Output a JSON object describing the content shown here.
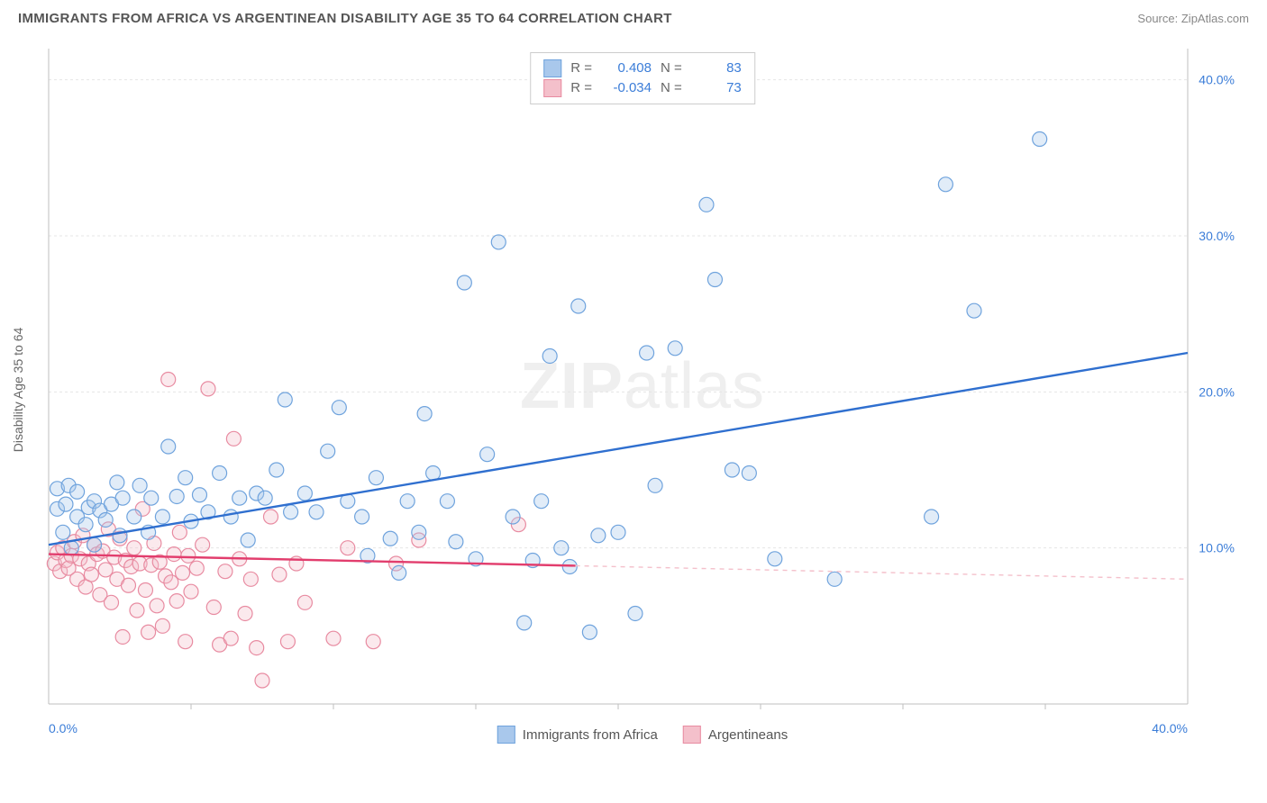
{
  "title": "IMMIGRANTS FROM AFRICA VS ARGENTINEAN DISABILITY AGE 35 TO 64 CORRELATION CHART",
  "source_label": "Source:",
  "source_name": "ZipAtlas.com",
  "y_axis_label": "Disability Age 35 to 64",
  "watermark_left": "ZIP",
  "watermark_right": "atlas",
  "chart": {
    "type": "scatter",
    "background_color": "#ffffff",
    "grid_color": "#e5e5e5",
    "grid_dash": "3,3",
    "axis_color": "#bfbfbf",
    "tick_label_color": "#3b7dd8",
    "xlim": [
      0,
      40
    ],
    "ylim": [
      0,
      42
    ],
    "x_tick_positions": [
      0,
      40
    ],
    "x_tick_labels": [
      "0.0%",
      "40.0%"
    ],
    "y_gridlines": [
      10,
      20,
      30,
      40
    ],
    "y_tick_labels": [
      "10.0%",
      "20.0%",
      "30.0%",
      "40.0%"
    ],
    "x_minor_ticks": [
      5,
      10,
      15,
      20,
      25,
      30,
      35
    ],
    "point_radius": 8,
    "point_stroke_width": 1.2,
    "point_fill_opacity": 0.35,
    "trend_line_width": 2.4,
    "series": [
      {
        "name": "Immigrants from Africa",
        "color_fill": "#a9c8ec",
        "color_stroke": "#6fa3dd",
        "trend_color": "#2f6fcf",
        "R": "0.408",
        "N": "83",
        "trend_start": [
          0,
          10.2
        ],
        "trend_end": [
          40,
          22.5
        ],
        "trend_dash_from_x": null,
        "points": [
          [
            0.3,
            12.5
          ],
          [
            0.3,
            13.8
          ],
          [
            0.5,
            11.0
          ],
          [
            0.7,
            14.0
          ],
          [
            0.8,
            10.0
          ],
          [
            0.6,
            12.8
          ],
          [
            1.0,
            12.0
          ],
          [
            1.0,
            13.6
          ],
          [
            1.3,
            11.5
          ],
          [
            1.4,
            12.6
          ],
          [
            1.6,
            10.2
          ],
          [
            1.6,
            13.0
          ],
          [
            1.8,
            12.4
          ],
          [
            2.0,
            11.8
          ],
          [
            2.2,
            12.8
          ],
          [
            2.4,
            14.2
          ],
          [
            2.5,
            10.8
          ],
          [
            2.6,
            13.2
          ],
          [
            3.0,
            12.0
          ],
          [
            3.2,
            14.0
          ],
          [
            3.5,
            11.0
          ],
          [
            3.6,
            13.2
          ],
          [
            4.0,
            12.0
          ],
          [
            4.2,
            16.5
          ],
          [
            4.5,
            13.3
          ],
          [
            4.8,
            14.5
          ],
          [
            5.0,
            11.7
          ],
          [
            5.3,
            13.4
          ],
          [
            5.6,
            12.3
          ],
          [
            6.0,
            14.8
          ],
          [
            6.4,
            12.0
          ],
          [
            6.7,
            13.2
          ],
          [
            7.0,
            10.5
          ],
          [
            7.3,
            13.5
          ],
          [
            7.6,
            13.2
          ],
          [
            8.0,
            15.0
          ],
          [
            8.3,
            19.5
          ],
          [
            8.5,
            12.3
          ],
          [
            9.0,
            13.5
          ],
          [
            9.4,
            12.3
          ],
          [
            9.8,
            16.2
          ],
          [
            10.2,
            19.0
          ],
          [
            10.5,
            13.0
          ],
          [
            11.0,
            12.0
          ],
          [
            11.2,
            9.5
          ],
          [
            11.5,
            14.5
          ],
          [
            12.0,
            10.6
          ],
          [
            12.3,
            8.4
          ],
          [
            12.6,
            13.0
          ],
          [
            13.0,
            11.0
          ],
          [
            13.2,
            18.6
          ],
          [
            13.5,
            14.8
          ],
          [
            14.0,
            13.0
          ],
          [
            14.3,
            10.4
          ],
          [
            14.6,
            27.0
          ],
          [
            15.0,
            9.3
          ],
          [
            15.4,
            16.0
          ],
          [
            15.8,
            29.6
          ],
          [
            16.3,
            12.0
          ],
          [
            16.7,
            5.2
          ],
          [
            17.0,
            9.2
          ],
          [
            17.3,
            13.0
          ],
          [
            17.6,
            22.3
          ],
          [
            18.0,
            10.0
          ],
          [
            18.3,
            8.8
          ],
          [
            18.6,
            25.5
          ],
          [
            19.0,
            4.6
          ],
          [
            19.3,
            10.8
          ],
          [
            20.0,
            11.0
          ],
          [
            20.6,
            5.8
          ],
          [
            21.0,
            22.5
          ],
          [
            21.3,
            14.0
          ],
          [
            22.0,
            22.8
          ],
          [
            23.1,
            32.0
          ],
          [
            23.4,
            27.2
          ],
          [
            24.0,
            15.0
          ],
          [
            24.6,
            14.8
          ],
          [
            25.5,
            9.3
          ],
          [
            27.6,
            8.0
          ],
          [
            31.0,
            12.0
          ],
          [
            31.5,
            33.3
          ],
          [
            32.5,
            25.2
          ],
          [
            34.8,
            36.2
          ]
        ]
      },
      {
        "name": "Argentineans",
        "color_fill": "#f4c0cb",
        "color_stroke": "#e88ba1",
        "trend_color": "#e23d6d",
        "R": "-0.034",
        "N": "73",
        "trend_start": [
          0,
          9.6
        ],
        "trend_end": [
          40,
          8.0
        ],
        "trend_dash_from_x": 18.5,
        "points": [
          [
            0.2,
            9.0
          ],
          [
            0.3,
            9.7
          ],
          [
            0.4,
            8.5
          ],
          [
            0.5,
            10.0
          ],
          [
            0.6,
            9.2
          ],
          [
            0.7,
            8.7
          ],
          [
            0.8,
            9.5
          ],
          [
            0.9,
            10.4
          ],
          [
            1.0,
            8.0
          ],
          [
            1.1,
            9.3
          ],
          [
            1.2,
            10.8
          ],
          [
            1.3,
            7.5
          ],
          [
            1.4,
            9.0
          ],
          [
            1.5,
            8.3
          ],
          [
            1.6,
            10.2
          ],
          [
            1.7,
            9.6
          ],
          [
            1.8,
            7.0
          ],
          [
            1.9,
            9.8
          ],
          [
            2.0,
            8.6
          ],
          [
            2.1,
            11.2
          ],
          [
            2.2,
            6.5
          ],
          [
            2.3,
            9.4
          ],
          [
            2.4,
            8.0
          ],
          [
            2.5,
            10.6
          ],
          [
            2.6,
            4.3
          ],
          [
            2.7,
            9.2
          ],
          [
            2.8,
            7.6
          ],
          [
            2.9,
            8.8
          ],
          [
            3.0,
            10.0
          ],
          [
            3.1,
            6.0
          ],
          [
            3.2,
            9.0
          ],
          [
            3.3,
            12.5
          ],
          [
            3.4,
            7.3
          ],
          [
            3.5,
            4.6
          ],
          [
            3.6,
            8.9
          ],
          [
            3.7,
            10.3
          ],
          [
            3.8,
            6.3
          ],
          [
            3.9,
            9.1
          ],
          [
            4.0,
            5.0
          ],
          [
            4.1,
            8.2
          ],
          [
            4.2,
            20.8
          ],
          [
            4.3,
            7.8
          ],
          [
            4.4,
            9.6
          ],
          [
            4.5,
            6.6
          ],
          [
            4.6,
            11.0
          ],
          [
            4.7,
            8.4
          ],
          [
            4.8,
            4.0
          ],
          [
            4.9,
            9.5
          ],
          [
            5.0,
            7.2
          ],
          [
            5.2,
            8.7
          ],
          [
            5.4,
            10.2
          ],
          [
            5.6,
            20.2
          ],
          [
            5.8,
            6.2
          ],
          [
            6.0,
            3.8
          ],
          [
            6.2,
            8.5
          ],
          [
            6.4,
            4.2
          ],
          [
            6.5,
            17.0
          ],
          [
            6.7,
            9.3
          ],
          [
            6.9,
            5.8
          ],
          [
            7.1,
            8.0
          ],
          [
            7.3,
            3.6
          ],
          [
            7.5,
            1.5
          ],
          [
            7.8,
            12.0
          ],
          [
            8.1,
            8.3
          ],
          [
            8.4,
            4.0
          ],
          [
            8.7,
            9.0
          ],
          [
            9.0,
            6.5
          ],
          [
            10.0,
            4.2
          ],
          [
            10.5,
            10.0
          ],
          [
            11.4,
            4.0
          ],
          [
            12.2,
            9.0
          ],
          [
            13.0,
            10.5
          ],
          [
            16.5,
            11.5
          ]
        ]
      }
    ]
  },
  "corr_legend": {
    "r_label": "R =",
    "n_label": "N ="
  },
  "bottom_legend_labels": [
    "Immigrants from Africa",
    "Argentineans"
  ]
}
